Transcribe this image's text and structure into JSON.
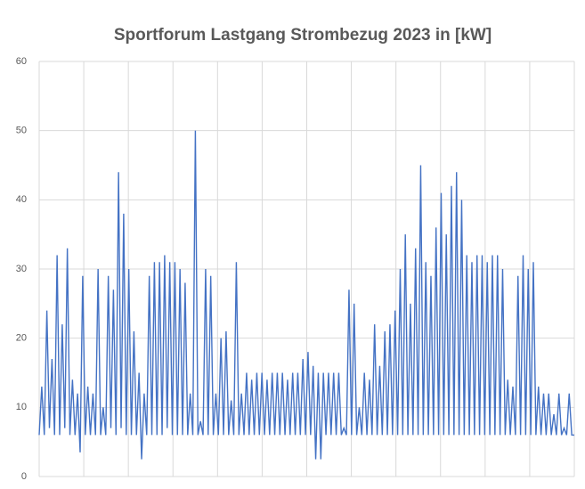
{
  "chart_data": {
    "type": "line",
    "title": "Sportforum Lastgang Strombezug 2023 in [kW]",
    "series": [
      {
        "name": null,
        "color": "#4472c4",
        "values": [
          6,
          13,
          6,
          24,
          7,
          17,
          6,
          32,
          6,
          22,
          7,
          33,
          6,
          14,
          6,
          12,
          3.5,
          29,
          6,
          13,
          6,
          12,
          6,
          30,
          6,
          10,
          6,
          29,
          7,
          27,
          6,
          44,
          7,
          38,
          6,
          30,
          6,
          21,
          6,
          15,
          2.5,
          12,
          6,
          29,
          6,
          31,
          6,
          31,
          6,
          32,
          7,
          31,
          6,
          31,
          6,
          30,
          6,
          28,
          6,
          12,
          6,
          50,
          6,
          8,
          6,
          30,
          6,
          29,
          6,
          12,
          6,
          20,
          6,
          21,
          6,
          11,
          6,
          31,
          6,
          12,
          6,
          15,
          6,
          14,
          6,
          15,
          6,
          15,
          6,
          14,
          6,
          15,
          6,
          15,
          6,
          15,
          6,
          14,
          6,
          15,
          6,
          15,
          6,
          17,
          6,
          18,
          6,
          16,
          2.5,
          15,
          2.5,
          15,
          6,
          15,
          6,
          15,
          6,
          15,
          6,
          7,
          6,
          27,
          6,
          25,
          6,
          10,
          6,
          15,
          6,
          14,
          6,
          22,
          6,
          16,
          6,
          21,
          6,
          22,
          6,
          24,
          6,
          30,
          6,
          35,
          6,
          25,
          6,
          33,
          6,
          45,
          6,
          31,
          6,
          29,
          6,
          36,
          6,
          41,
          6,
          35,
          6,
          42,
          6,
          44,
          6,
          40,
          6,
          32,
          6,
          31,
          6,
          32,
          6,
          32,
          6,
          31,
          6,
          32,
          6,
          32,
          6,
          30,
          6,
          14,
          6,
          13,
          6,
          29,
          6,
          32,
          6,
          30,
          6,
          31,
          6,
          13,
          6,
          12,
          6,
          12,
          6,
          9,
          6,
          12,
          6,
          7,
          6,
          12,
          6,
          6
        ]
      }
    ],
    "ylim": [
      0,
      60
    ],
    "yticks": [
      0,
      10,
      20,
      30,
      40,
      50,
      60
    ],
    "grid": true
  }
}
